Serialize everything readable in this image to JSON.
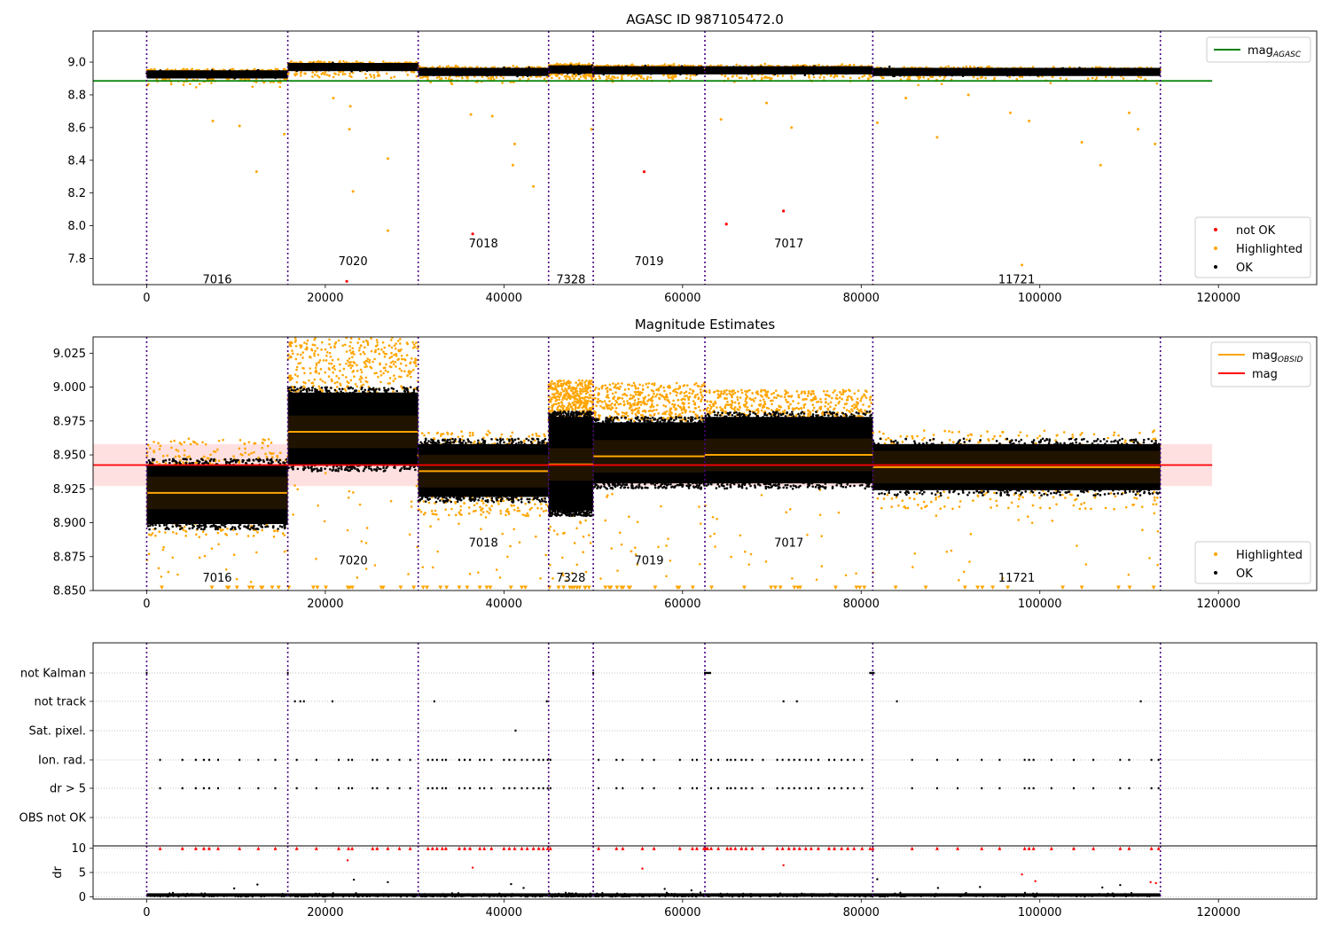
{
  "colors": {
    "ok": "#000000",
    "highlighted": "#ffa500",
    "not_ok": "#ff0000",
    "agasc_line": "#008000",
    "mag_line": "#ff0000",
    "obsid_line": "#ffa500",
    "boundary": "#4b0082",
    "band": "#ffcccc"
  },
  "chart_data": [
    {
      "type": "scatter",
      "title": "AGASC ID 987105472.0",
      "xlim": [
        -6000,
        131000
      ],
      "ylim": [
        7.64,
        9.19
      ],
      "xticks": [
        0,
        20000,
        40000,
        60000,
        80000,
        100000,
        120000
      ],
      "xtick_labels": [
        "0",
        "20000",
        "40000",
        "60000",
        "80000",
        "100000",
        "120000"
      ],
      "yticks": [
        7.8,
        8.0,
        8.2,
        8.4,
        8.6,
        8.8,
        9.0
      ],
      "ytick_labels": [
        "7.8",
        "8.0",
        "8.2",
        "8.4",
        "8.6",
        "8.8",
        "9.0"
      ],
      "boundaries": [
        0,
        15800,
        30400,
        45000,
        50000,
        62500,
        81300,
        113500
      ],
      "segments": [
        {
          "obsid": "7016",
          "start": 0,
          "end": 15800,
          "mag": 8.925,
          "label_y": 7.67
        },
        {
          "obsid": "7020",
          "start": 15800,
          "end": 30400,
          "mag": 8.97,
          "label_y": 7.78
        },
        {
          "obsid": "7018",
          "start": 30400,
          "end": 45000,
          "mag": 8.94,
          "label_y": 7.89
        },
        {
          "obsid": "7328",
          "start": 45000,
          "end": 50000,
          "mag": 8.955,
          "label_y": 7.67
        },
        {
          "obsid": "7019",
          "start": 50000,
          "end": 62500,
          "mag": 8.95,
          "label_y": 7.78
        },
        {
          "obsid": "7017",
          "start": 62500,
          "end": 81300,
          "mag": 8.95,
          "label_y": 7.89
        },
        {
          "obsid": "11721",
          "start": 81300,
          "end": 113500,
          "mag": 8.94,
          "label_y": 7.67
        }
      ],
      "mag_agasc": 8.885,
      "mag_agasc_xrange": [
        -6000,
        119300
      ],
      "not_ok_points": [
        {
          "x": 22400,
          "y": 7.66
        },
        {
          "x": 55700,
          "y": 8.33
        },
        {
          "x": 64900,
          "y": 8.01
        },
        {
          "x": 71300,
          "y": 8.09
        },
        {
          "x": 36500,
          "y": 7.95
        }
      ],
      "highlighted_outliers": [
        {
          "x": 7400,
          "y": 8.64
        },
        {
          "x": 10400,
          "y": 8.61
        },
        {
          "x": 12300,
          "y": 8.33
        },
        {
          "x": 15400,
          "y": 8.56
        },
        {
          "x": 22700,
          "y": 8.59
        },
        {
          "x": 23100,
          "y": 8.21
        },
        {
          "x": 27000,
          "y": 8.41
        },
        {
          "x": 27000,
          "y": 7.97
        },
        {
          "x": 20900,
          "y": 8.78
        },
        {
          "x": 22800,
          "y": 8.73
        },
        {
          "x": 36300,
          "y": 8.68
        },
        {
          "x": 38700,
          "y": 8.67
        },
        {
          "x": 41000,
          "y": 8.37
        },
        {
          "x": 41200,
          "y": 8.5
        },
        {
          "x": 43300,
          "y": 8.24
        },
        {
          "x": 49800,
          "y": 8.59
        },
        {
          "x": 64300,
          "y": 8.65
        },
        {
          "x": 69400,
          "y": 8.75
        },
        {
          "x": 72200,
          "y": 8.6
        },
        {
          "x": 88500,
          "y": 8.54
        },
        {
          "x": 96700,
          "y": 8.69
        },
        {
          "x": 98800,
          "y": 8.64
        },
        {
          "x": 98000,
          "y": 7.76
        },
        {
          "x": 104700,
          "y": 8.51
        },
        {
          "x": 106800,
          "y": 8.37
        },
        {
          "x": 110000,
          "y": 8.69
        },
        {
          "x": 111000,
          "y": 8.59
        },
        {
          "x": 112900,
          "y": 8.5
        },
        {
          "x": 81800,
          "y": 8.63
        },
        {
          "x": 85000,
          "y": 8.78
        },
        {
          "x": 92000,
          "y": 8.8
        }
      ],
      "legends": [
        {
          "placement": "upper-right",
          "entries": [
            {
              "label": "mag",
              "sub": "AGASC",
              "kind": "line",
              "color": "#008000"
            }
          ]
        },
        {
          "placement": "lower-right",
          "entries": [
            {
              "label": "not OK",
              "kind": "dot",
              "color": "#ff0000"
            },
            {
              "label": "Highlighted",
              "kind": "dot",
              "color": "#ffa500"
            },
            {
              "label": "OK",
              "kind": "dot",
              "color": "#000000"
            }
          ]
        }
      ]
    },
    {
      "type": "scatter",
      "title": "Magnitude Estimates",
      "xlim": [
        -6000,
        131000
      ],
      "ylim": [
        8.85,
        9.037
      ],
      "xticks": [
        0,
        20000,
        40000,
        60000,
        80000,
        100000,
        120000
      ],
      "xtick_labels": [
        "0",
        "20000",
        "40000",
        "60000",
        "80000",
        "100000",
        "120000"
      ],
      "yticks": [
        8.85,
        8.875,
        8.9,
        8.925,
        8.95,
        8.975,
        9.0,
        9.025
      ],
      "ytick_labels": [
        "8.850",
        "8.875",
        "8.900",
        "8.925",
        "8.950",
        "8.975",
        "9.000",
        "9.025"
      ],
      "mag": 8.9425,
      "mag_band": [
        8.927,
        8.958
      ],
      "mag_xrange": [
        -6000,
        119300
      ],
      "segments": [
        {
          "obsid": "7016",
          "start": 0,
          "end": 15800,
          "mag_obsid": 8.922,
          "ok_range": [
            8.895,
            8.947
          ],
          "hl_range": [
            8.89,
            8.962
          ],
          "label_y": 8.859
        },
        {
          "obsid": "7020",
          "start": 15800,
          "end": 30400,
          "mag_obsid": 8.967,
          "ok_range": [
            8.938,
            9.0
          ],
          "hl_range": [
            8.99,
            9.037
          ],
          "label_y": 8.872
        },
        {
          "obsid": "7018",
          "start": 30400,
          "end": 45000,
          "mag_obsid": 8.938,
          "ok_range": [
            8.915,
            8.962
          ],
          "hl_range": [
            8.905,
            8.968
          ],
          "label_y": 8.885
        },
        {
          "obsid": "7328",
          "start": 45000,
          "end": 50000,
          "mag_obsid": 8.943,
          "ok_range": [
            8.905,
            8.982
          ],
          "hl_range": [
            8.975,
            9.005
          ],
          "label_y": 8.859
        },
        {
          "obsid": "7019",
          "start": 50000,
          "end": 62500,
          "mag_obsid": 8.949,
          "ok_range": [
            8.925,
            8.978
          ],
          "hl_range": [
            8.975,
            9.003
          ],
          "label_y": 8.872
        },
        {
          "obsid": "7017",
          "start": 62500,
          "end": 81300,
          "mag_obsid": 8.95,
          "ok_range": [
            8.925,
            8.982
          ],
          "hl_range": [
            8.978,
            8.998
          ],
          "label_y": 8.885
        },
        {
          "obsid": "11721",
          "start": 81300,
          "end": 113500,
          "mag_obsid": 8.941,
          "ok_range": [
            8.92,
            8.962
          ],
          "hl_range": [
            8.91,
            8.968
          ],
          "label_y": 8.859
        }
      ],
      "legend": {
        "placement": "upper-right",
        "entries": [
          {
            "label": "mag",
            "sub": "OBSID",
            "kind": "line",
            "color": "#ffa500"
          },
          {
            "label": "mag",
            "kind": "line",
            "color": "#ff0000"
          }
        ]
      },
      "legend2": {
        "placement": "lower-right",
        "entries": [
          {
            "label": "Highlighted",
            "kind": "dot",
            "color": "#ffa500"
          },
          {
            "label": "OK",
            "kind": "dot",
            "color": "#000000"
          }
        ]
      }
    },
    {
      "type": "scatter",
      "xlim": [
        -6000,
        131000
      ],
      "xticks": [
        0,
        20000,
        40000,
        60000,
        80000,
        100000,
        120000
      ],
      "xtick_labels": [
        "0",
        "20000",
        "40000",
        "60000",
        "80000",
        "100000",
        "120000"
      ],
      "flag_rows": [
        "not Kalman",
        "not track",
        "Sat. pixel.",
        "Ion. rad.",
        "dr > 5",
        "OBS not OK"
      ],
      "flag_points": {
        "not Kalman": [
          0,
          15800,
          50000,
          62500,
          62700,
          62900,
          63100,
          81000,
          81200,
          81400
        ],
        "not track": [
          16600,
          17200,
          17600,
          20800,
          32200,
          44800,
          71300,
          72800,
          84000,
          111300
        ],
        "Sat. pixel.": [
          41300
        ],
        "Ion. rad.": [
          1500,
          4000,
          5500,
          6400,
          7000,
          8000,
          10400,
          12500,
          14400,
          16800,
          19000,
          21500,
          22600,
          23000,
          25300,
          25800,
          27000,
          28300,
          29500,
          31500,
          32000,
          32500,
          33100,
          33500,
          35000,
          35600,
          36200,
          37300,
          37800,
          38600,
          40000,
          40600,
          41200,
          42000,
          42600,
          43300,
          43900,
          44400,
          44900,
          45200,
          50600,
          52600,
          53300,
          55500,
          56800,
          59700,
          61100,
          61600,
          63200,
          64000,
          65000,
          65400,
          65900,
          66600,
          67100,
          67800,
          69000,
          70600,
          71200,
          71900,
          72500,
          73100,
          73800,
          74400,
          75200,
          76400,
          77000,
          77800,
          78500,
          79200,
          80100,
          85700,
          88500,
          90800,
          93500,
          95500,
          98300,
          98800,
          99300,
          101300,
          103800,
          106000,
          109000,
          110000,
          112500,
          113300
        ],
        "dr > 5": [
          1500,
          4000,
          5500,
          6400,
          7000,
          8000,
          10400,
          12500,
          14400,
          16800,
          19000,
          21500,
          22600,
          23000,
          25300,
          25800,
          27000,
          28300,
          29500,
          31500,
          32000,
          32500,
          33100,
          33500,
          35000,
          35600,
          36200,
          37300,
          37800,
          38600,
          40000,
          40600,
          41200,
          42000,
          42600,
          43300,
          43900,
          44400,
          44900,
          45200,
          50600,
          52600,
          53300,
          55500,
          56800,
          59700,
          61100,
          61600,
          63200,
          64000,
          65000,
          65400,
          65900,
          66600,
          67100,
          67800,
          69000,
          70600,
          71200,
          71900,
          72500,
          73100,
          73800,
          74400,
          75200,
          76400,
          77000,
          77800,
          78500,
          79200,
          80100,
          85700,
          88500,
          90800,
          93500,
          95500,
          98300,
          98800,
          99300,
          101300,
          103800,
          106000,
          109000,
          110000,
          112500,
          113300
        ],
        "OBS not OK": []
      }
    },
    {
      "type": "scatter",
      "ylabel": "dr",
      "xlim": [
        -6000,
        131000
      ],
      "ylim": [
        -0.5,
        10.5
      ],
      "yticks": [
        0,
        5,
        10
      ],
      "ytick_labels": [
        "0",
        "5",
        "10"
      ],
      "xticks": [
        0,
        20000,
        40000,
        60000,
        80000,
        100000,
        120000
      ],
      "xtick_labels": [
        "0",
        "20000",
        "40000",
        "60000",
        "80000",
        "100000",
        "120000"
      ],
      "capped_points": [
        1500,
        4000,
        5500,
        6400,
        7000,
        8000,
        10400,
        12500,
        14400,
        16800,
        19000,
        21500,
        22600,
        23000,
        25300,
        25800,
        27000,
        28300,
        29500,
        31500,
        32000,
        32500,
        33100,
        33500,
        35000,
        35600,
        36200,
        37300,
        37800,
        38600,
        40000,
        40600,
        41200,
        42000,
        42600,
        43300,
        43900,
        44400,
        44900,
        45200,
        50600,
        52600,
        53300,
        55500,
        56800,
        59700,
        61100,
        61600,
        62400,
        62600,
        62800,
        63200,
        64000,
        65000,
        65400,
        65900,
        66600,
        67100,
        67800,
        69000,
        70600,
        71200,
        71900,
        72500,
        73100,
        73800,
        74400,
        75200,
        76400,
        77000,
        77800,
        78500,
        79200,
        80100,
        81000,
        81300,
        85700,
        88500,
        90800,
        93500,
        95500,
        98300,
        98800,
        99300,
        101300,
        103800,
        106000,
        109000,
        110000,
        112500,
        113300
      ],
      "red_points": [
        {
          "x": 22500,
          "y": 7.5
        },
        {
          "x": 36500,
          "y": 6
        },
        {
          "x": 55500,
          "y": 5.8
        },
        {
          "x": 71300,
          "y": 6.5
        },
        {
          "x": 98000,
          "y": 4.6
        },
        {
          "x": 99500,
          "y": 3.2
        },
        {
          "x": 112400,
          "y": 3.0
        },
        {
          "x": 113000,
          "y": 2.8
        }
      ],
      "black_outliers": [
        {
          "x": 9800,
          "y": 1.7
        },
        {
          "x": 12400,
          "y": 2.5
        },
        {
          "x": 23200,
          "y": 3.5
        },
        {
          "x": 27000,
          "y": 3.0
        },
        {
          "x": 40800,
          "y": 2.6
        },
        {
          "x": 42200,
          "y": 1.8
        },
        {
          "x": 58000,
          "y": 1.6
        },
        {
          "x": 61000,
          "y": 1.3
        },
        {
          "x": 81800,
          "y": 3.6
        },
        {
          "x": 88600,
          "y": 1.8
        },
        {
          "x": 93300,
          "y": 2.0
        },
        {
          "x": 107000,
          "y": 1.9
        },
        {
          "x": 109000,
          "y": 2.4
        }
      ]
    }
  ]
}
